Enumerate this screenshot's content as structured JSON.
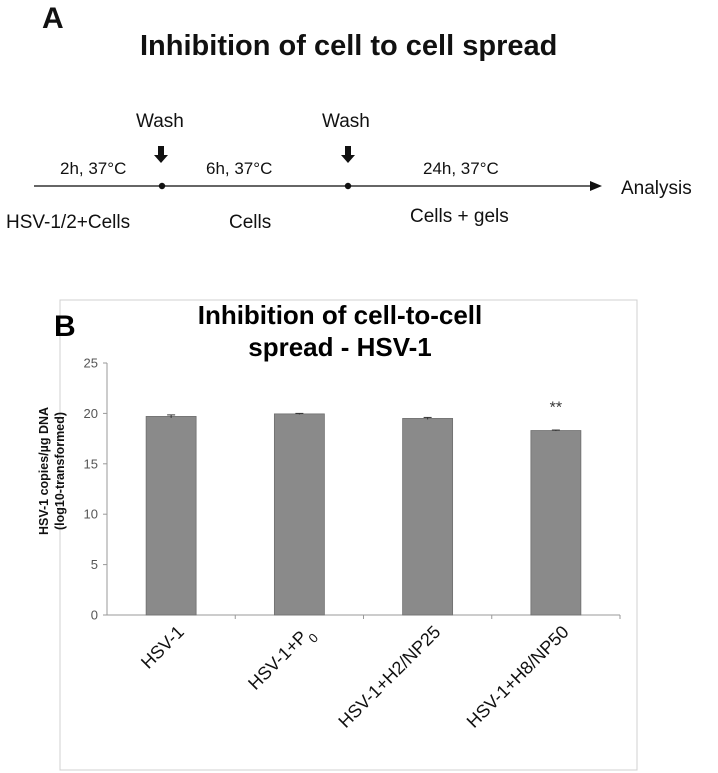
{
  "panel_a": {
    "letter": "A",
    "title": "Inhibition of cell to cell spread",
    "wash_1": "Wash",
    "wash_2": "Wash",
    "step_1_time": "2h, 37°C",
    "step_2_time": "6h,  37°C",
    "step_3_time": "24h,  37°C",
    "step_1_label": "HSV-1/2+Cells",
    "step_2_label": "Cells",
    "step_3_label": "Cells + gels",
    "end_label": "Analysis"
  },
  "panel_b": {
    "letter": "B"
  },
  "chart_data": {
    "type": "bar",
    "title_line1": "Inhibition of cell-to-cell",
    "title_line2": "spread - HSV-1",
    "ylabel_line1": "HSV-1 copies/µg DNA",
    "ylabel_line2": "(log10-transformed)",
    "xlabel": "",
    "categories": [
      "HSV-1",
      "HSV-1+P0",
      "HSV-1+H2/NP25",
      "HSV-1+H8/NP50"
    ],
    "category_display": [
      {
        "main": "HSV-1",
        "sub": ""
      },
      {
        "main": "HSV-1+P",
        "sub": "0"
      },
      {
        "main": "HSV-1+H2/NP25",
        "sub": ""
      },
      {
        "main": "HSV-1+H8/NP50",
        "sub": ""
      }
    ],
    "values": [
      19.7,
      19.95,
      19.5,
      18.3
    ],
    "errors": [
      0.15,
      0.05,
      0.1,
      0.05
    ],
    "annotations": [
      "",
      "",
      "",
      "**"
    ],
    "ylim": [
      0,
      25
    ],
    "yticks": [
      "0",
      "5",
      "10",
      "15",
      "20",
      "25"
    ],
    "bar_color": "#8a8a8a",
    "grid": false
  }
}
